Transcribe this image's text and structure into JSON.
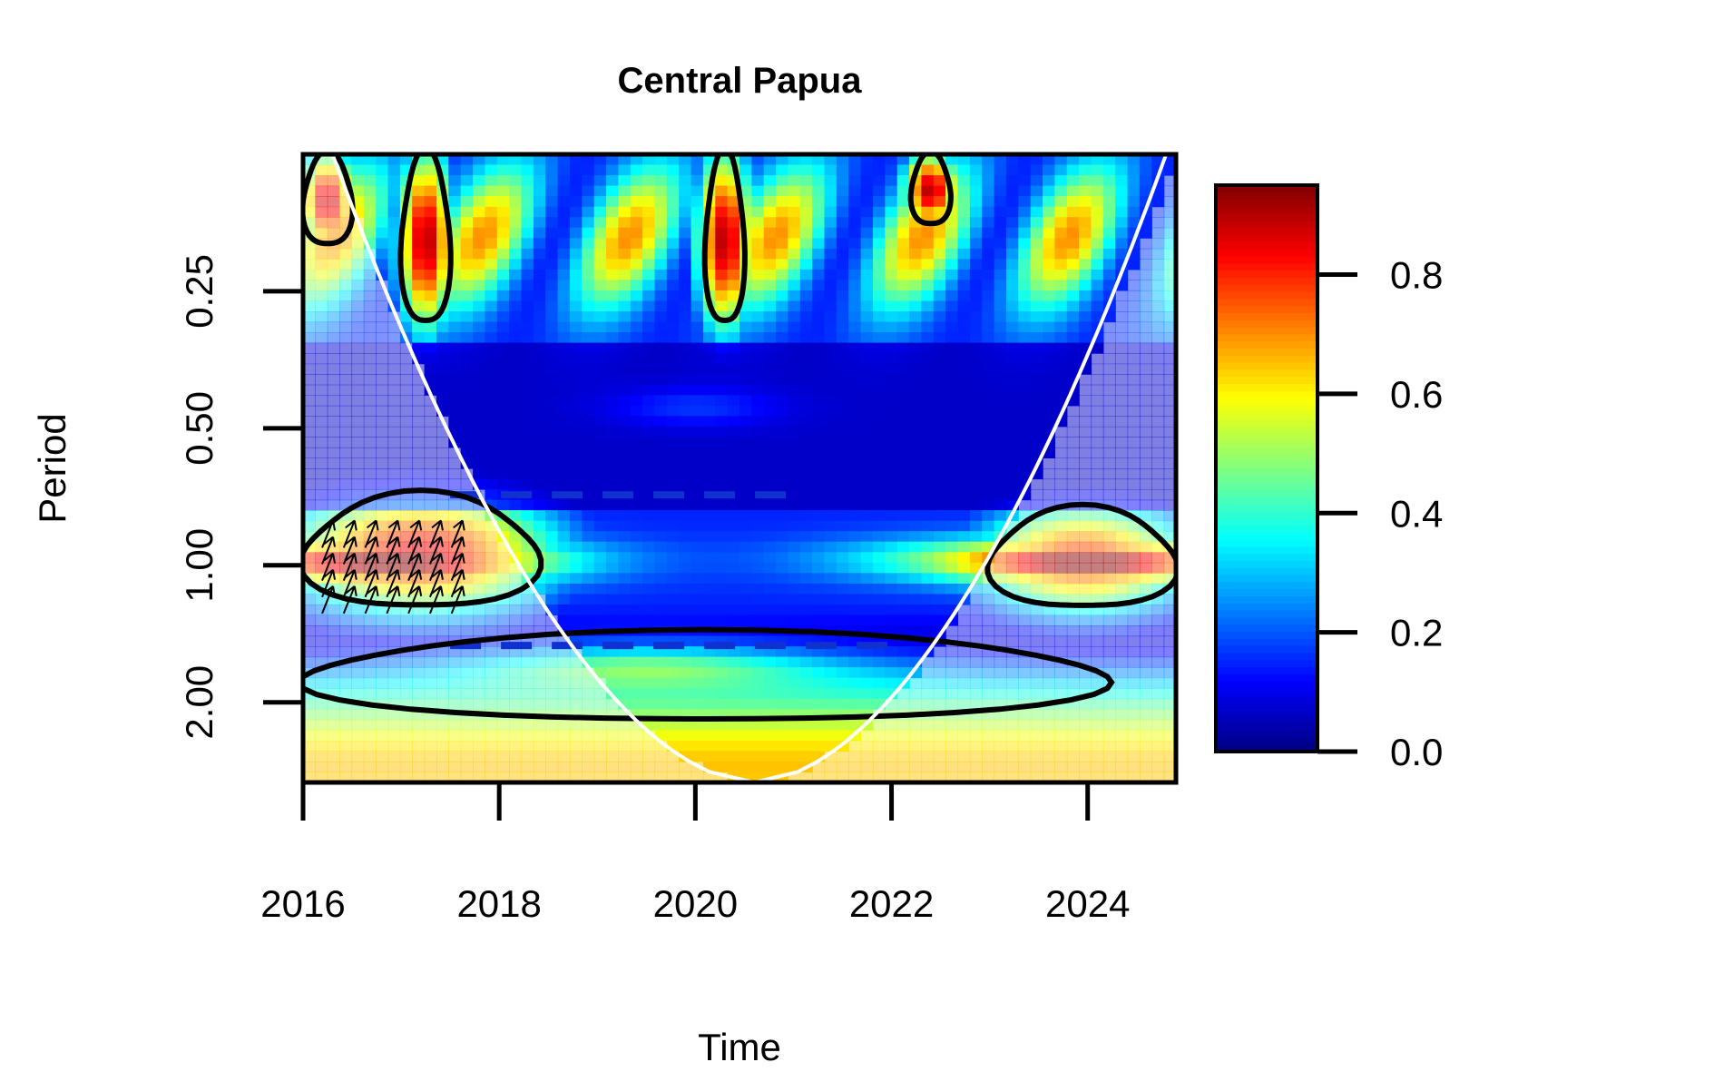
{
  "chart_data": {
    "type": "heatmap",
    "title": "Central Papua",
    "xlabel": "Time",
    "ylabel": "Period",
    "xlim": [
      2016,
      2024.9
    ],
    "x_ticks": [
      2016,
      2018,
      2020,
      2022,
      2024
    ],
    "x_tick_labels": [
      "2016",
      "2018",
      "2020",
      "2022",
      "2024"
    ],
    "y_scale": "log2",
    "ylim": [
      0.125,
      3.0
    ],
    "y_ticks": [
      0.25,
      0.5,
      1.0,
      2.0
    ],
    "y_tick_labels": [
      "0.25",
      "0.50",
      "1.00",
      "2.00"
    ],
    "colorbar": {
      "range": [
        0.0,
        0.95
      ],
      "ticks": [
        0.0,
        0.2,
        0.4,
        0.6,
        0.8
      ],
      "tick_labels": [
        "0.0",
        "0.2",
        "0.4",
        "0.6",
        "0.8"
      ],
      "colormap": [
        "#000080",
        "#0000ff",
        "#0080ff",
        "#00ffff",
        "#80ff80",
        "#ffff00",
        "#ff8000",
        "#ff0000",
        "#800000"
      ]
    },
    "features": {
      "high_power_regions": [
        {
          "x": [
            2016.0,
            2018.4
          ],
          "period": [
            0.7,
            1.25
          ],
          "level": 0.85
        },
        {
          "x": [
            2023.0,
            2024.9
          ],
          "period": [
            0.75,
            1.25
          ],
          "level": 0.8
        },
        {
          "x": [
            2016.0,
            2016.5
          ],
          "period": [
            0.125,
            0.2
          ],
          "level": 0.9
        },
        {
          "x": [
            2017.0,
            2017.5
          ],
          "period": [
            0.125,
            0.3
          ],
          "level": 0.9
        },
        {
          "x": [
            2020.1,
            2020.5
          ],
          "period": [
            0.125,
            0.3
          ],
          "level": 0.9
        },
        {
          "x": [
            2022.2,
            2022.6
          ],
          "period": [
            0.125,
            0.18
          ],
          "level": 0.9
        }
      ],
      "significance_contour_low_band": {
        "x": [
          2016.0,
          2024.2
        ],
        "period": [
          1.4,
          2.2
        ]
      },
      "ridge_lines": [
        {
          "period": 0.7,
          "x": [
            2017.5,
            2021.0
          ]
        },
        {
          "period": 1.5,
          "x": [
            2017.5,
            2022.0
          ]
        }
      ],
      "cone_of_influence": {
        "apex_x": 2020.6,
        "edges_x": [
          2016.3,
          2024.8
        ]
      }
    }
  }
}
